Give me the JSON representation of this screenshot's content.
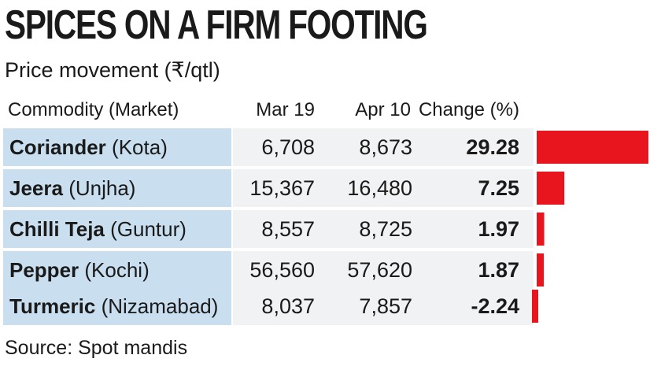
{
  "title": "SPICES ON A FIRM FOOTING",
  "subtitle": "Price movement (₹/qtl)",
  "source": "Source: Spot mandis",
  "colors": {
    "bar": "#e8141e",
    "name_bg": "#c9dff0",
    "value_bg": "#f1f2f3"
  },
  "chart_data": {
    "type": "bar",
    "columns": [
      "Commodity (Market)",
      "Mar 19",
      "Apr 10",
      "Change (%)"
    ],
    "rows": [
      {
        "commodity": "Coriander",
        "market": "(Kota)",
        "mar19": "6,708",
        "apr10": "8,673",
        "change": "29.28"
      },
      {
        "commodity": "Jeera",
        "market": "(Unjha)",
        "mar19": "15,367",
        "apr10": "16,480",
        "change": "7.25"
      },
      {
        "commodity": "Chilli Teja",
        "market": "(Guntur)",
        "mar19": "8,557",
        "apr10": "8,725",
        "change": "1.97"
      },
      {
        "commodity": "Pepper",
        "market": "(Kochi)",
        "mar19": "56,560",
        "apr10": "57,620",
        "change": "1.87"
      },
      {
        "commodity": "Turmeric",
        "market": "(Nizamabad)",
        "mar19": "8,037",
        "apr10": "7,857",
        "change": "-2.24"
      }
    ],
    "categories": [
      "Coriander",
      "Jeera",
      "Chilli Teja",
      "Pepper",
      "Turmeric"
    ],
    "values": [
      29.28,
      7.25,
      1.97,
      1.87,
      -2.24
    ]
  }
}
